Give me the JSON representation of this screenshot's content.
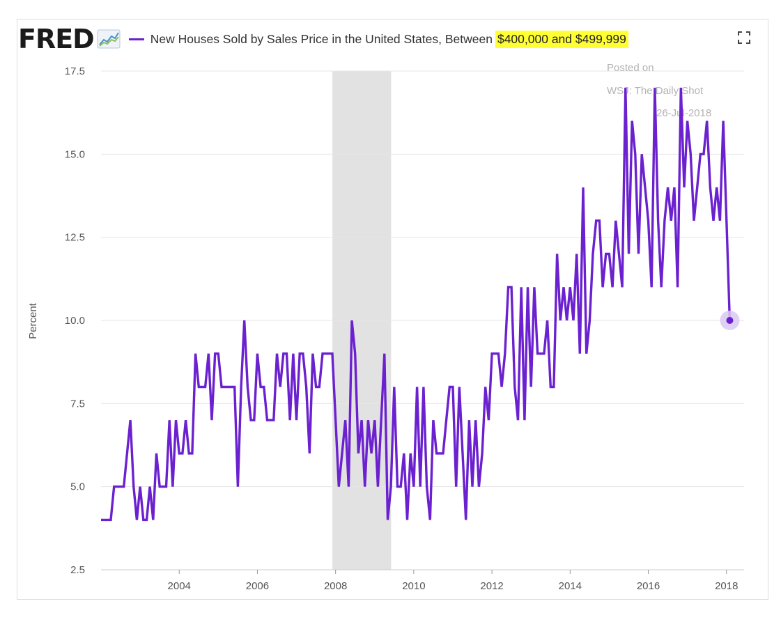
{
  "header": {
    "logo": "FRED",
    "title_main": "New Houses Sold by Sales Price in the United States, Between",
    "title_highlight": "$400,000 and $499,999"
  },
  "colors": {
    "series": "#6b21cf",
    "recession": "#e2e2e2",
    "grid": "#e6e6e6",
    "highlight": "#ffff33",
    "marker_halo": "#d9c9f2"
  },
  "annotation": {
    "line1": "Posted on",
    "line2": "WSJ: The Daily Shot",
    "line3": "26-Jul-2018"
  },
  "chart_data": {
    "type": "line",
    "title": "New Houses Sold by Sales Price in the United States, Between $400,000 and $499,999",
    "xlabel": "",
    "ylabel": "Percent",
    "xlim": [
      2002.0,
      2018.45
    ],
    "ylim": [
      2.5,
      17.5
    ],
    "yticks": [
      2.5,
      5.0,
      7.5,
      10.0,
      12.5,
      15.0,
      17.5
    ],
    "ytick_labels": [
      "2.5",
      "5.0",
      "7.5",
      "10.0",
      "12.5",
      "15.0",
      "17.5"
    ],
    "xticks": [
      2004,
      2006,
      2008,
      2010,
      2012,
      2014,
      2016,
      2018
    ],
    "xtick_labels": [
      "2004",
      "2006",
      "2008",
      "2010",
      "2012",
      "2014",
      "2016",
      "2018"
    ],
    "recessions": [
      [
        2007.92,
        2009.42
      ]
    ],
    "grid": true,
    "legend": "top-left",
    "series": [
      {
        "name": "New Houses Sold by Sales Price in the United States, Between $400,000 and $499,999",
        "start": 2002.0,
        "frequency": "monthly",
        "values": [
          4,
          4,
          4,
          4,
          5,
          5,
          5,
          5,
          6,
          7,
          5,
          4,
          5,
          4,
          4,
          5,
          4,
          6,
          5,
          5,
          5,
          7,
          5,
          7,
          6,
          6,
          7,
          6,
          6,
          9,
          8,
          8,
          8,
          9,
          7,
          9,
          9,
          8,
          8,
          8,
          8,
          8,
          5,
          8,
          10,
          8,
          7,
          7,
          9,
          8,
          8,
          7,
          7,
          7,
          9,
          8,
          9,
          9,
          7,
          9,
          7,
          9,
          9,
          8,
          6,
          9,
          8,
          8,
          9,
          9,
          9,
          9,
          7,
          5,
          6,
          7,
          5,
          10,
          9,
          6,
          7,
          5,
          7,
          6,
          7,
          5,
          7,
          9,
          4,
          5,
          8,
          5,
          5,
          6,
          4,
          6,
          5,
          8,
          5,
          8,
          5,
          4,
          7,
          6,
          6,
          6,
          7,
          8,
          8,
          5,
          8,
          6,
          4,
          7,
          5,
          7,
          5,
          6,
          8,
          7,
          9,
          9,
          9,
          8,
          9,
          11,
          11,
          8,
          7,
          11,
          7,
          11,
          8,
          11,
          9,
          9,
          9,
          10,
          8,
          8,
          12,
          10,
          11,
          10,
          11,
          10,
          12,
          9,
          14,
          9,
          10,
          12,
          13,
          13,
          11,
          12,
          12,
          11,
          13,
          12,
          11,
          17,
          12,
          16,
          15,
          12,
          15,
          14,
          13,
          11,
          17,
          13,
          11,
          13,
          14,
          13,
          14,
          11,
          17,
          14,
          16,
          15,
          13,
          14,
          15,
          15,
          16,
          14,
          13,
          14,
          13,
          16,
          13,
          10
        ]
      }
    ],
    "last_point_marker": true
  }
}
